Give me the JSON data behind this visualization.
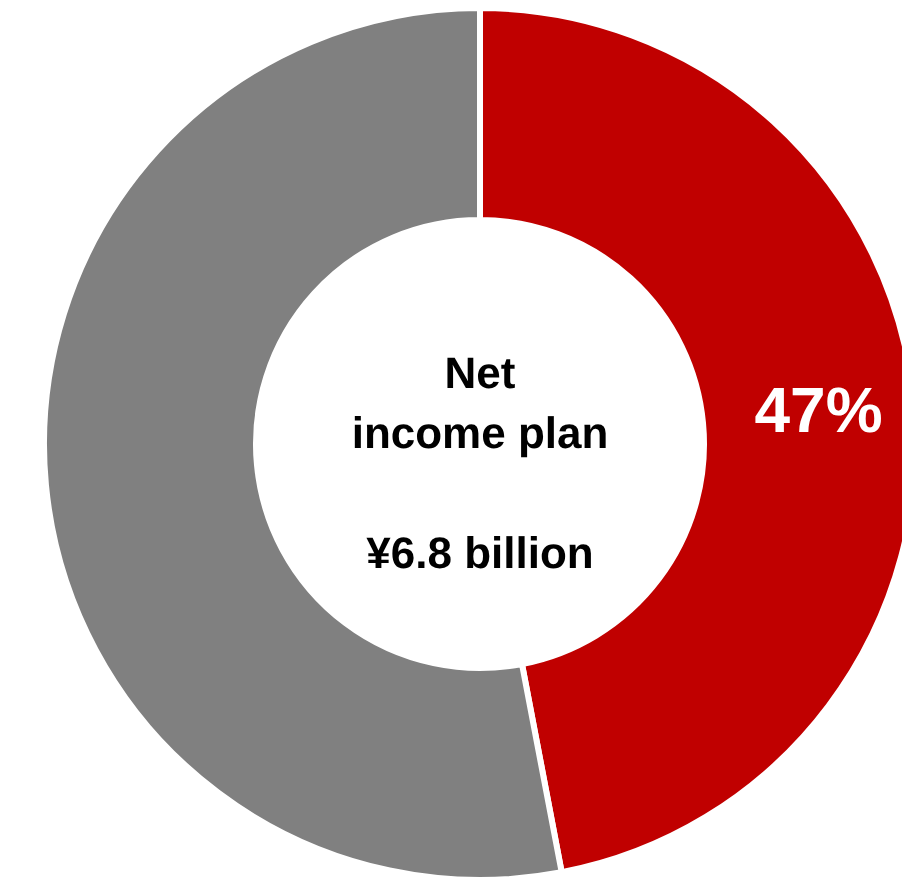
{
  "chart_data": {
    "type": "donut",
    "title": "Net income plan",
    "annotations": [
      "¥6.8 billion"
    ],
    "categories": [
      null,
      null
    ],
    "values": [
      47,
      53
    ],
    "colors": [
      "#c00000",
      "#808080"
    ],
    "value_labels": [
      "47%",
      null
    ]
  }
}
